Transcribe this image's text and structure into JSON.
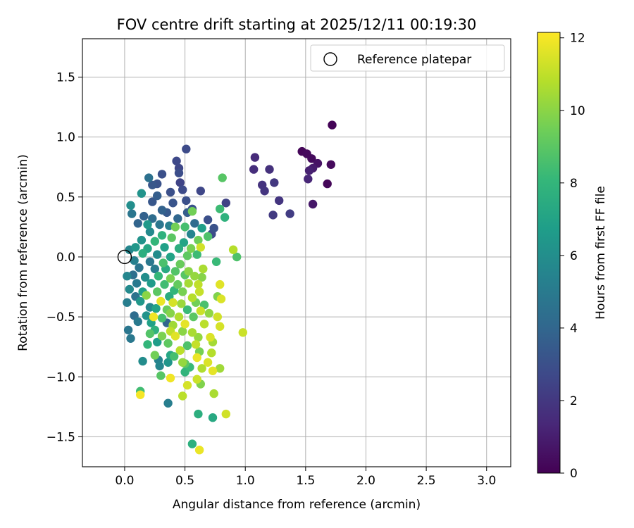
{
  "chart_data": {
    "type": "scatter",
    "title": "FOV centre drift starting at 2025/12/11 00:19:30",
    "xlabel": "Angular distance from reference (arcmin)",
    "ylabel": "Rotation from reference (arcmin)",
    "xlim": [
      -0.35,
      3.2
    ],
    "ylim": [
      -1.75,
      1.82
    ],
    "xticks": [
      0.0,
      0.5,
      1.0,
      1.5,
      2.0,
      2.5,
      3.0
    ],
    "xtick_labels": [
      "0.0",
      "0.5",
      "1.0",
      "1.5",
      "2.0",
      "2.5",
      "3.0"
    ],
    "yticks": [
      -1.5,
      -1.0,
      -0.5,
      0.0,
      0.5,
      1.0,
      1.5
    ],
    "ytick_labels": [
      "−1.5",
      "−1.0",
      "−0.5",
      "0.0",
      "0.5",
      "1.0",
      "1.5"
    ],
    "grid": true,
    "legend": {
      "position": "top-right",
      "label": "Reference platepar"
    },
    "reference_point": {
      "x": 0.0,
      "y": 0.0
    },
    "colorbar": {
      "label": "Hours from first FF file",
      "colormap": "viridis",
      "range": [
        0,
        12.15
      ],
      "ticks": [
        0,
        2,
        4,
        6,
        8,
        10,
        12
      ],
      "tick_labels": [
        "0",
        "2",
        "4",
        "6",
        "8",
        "10",
        "12"
      ]
    },
    "colormap_stops": [
      "#440154",
      "#482878",
      "#3e4989",
      "#31688e",
      "#26828e",
      "#1f9e89",
      "#35b779",
      "#6ece58",
      "#b5de2b",
      "#fde725"
    ],
    "points": [
      {
        "x": 1.72,
        "y": 1.1,
        "c": 0.1
      },
      {
        "x": 1.47,
        "y": 0.88,
        "c": 0.2
      },
      {
        "x": 1.51,
        "y": 0.86,
        "c": 0.3
      },
      {
        "x": 1.55,
        "y": 0.82,
        "c": 0.35
      },
      {
        "x": 1.6,
        "y": 0.78,
        "c": 0.6
      },
      {
        "x": 1.71,
        "y": 0.77,
        "c": 0.3
      },
      {
        "x": 1.56,
        "y": 0.74,
        "c": 0.9
      },
      {
        "x": 1.53,
        "y": 0.72,
        "c": 1.1
      },
      {
        "x": 1.52,
        "y": 0.65,
        "c": 1.3
      },
      {
        "x": 1.68,
        "y": 0.61,
        "c": 0.2
      },
      {
        "x": 1.56,
        "y": 0.44,
        "c": 0.8
      },
      {
        "x": 1.08,
        "y": 0.83,
        "c": 1.5
      },
      {
        "x": 1.07,
        "y": 0.73,
        "c": 1.6
      },
      {
        "x": 1.2,
        "y": 0.73,
        "c": 1.7
      },
      {
        "x": 1.14,
        "y": 0.6,
        "c": 1.8
      },
      {
        "x": 1.16,
        "y": 0.55,
        "c": 1.9
      },
      {
        "x": 1.24,
        "y": 0.62,
        "c": 2.0
      },
      {
        "x": 1.28,
        "y": 0.47,
        "c": 1.9
      },
      {
        "x": 1.23,
        "y": 0.35,
        "c": 2.1
      },
      {
        "x": 1.37,
        "y": 0.36,
        "c": 2.2
      },
      {
        "x": 0.51,
        "y": 0.9,
        "c": 2.8
      },
      {
        "x": 0.43,
        "y": 0.8,
        "c": 2.7
      },
      {
        "x": 0.45,
        "y": 0.74,
        "c": 2.6
      },
      {
        "x": 0.45,
        "y": 0.7,
        "c": 2.9
      },
      {
        "x": 0.31,
        "y": 0.69,
        "c": 3.0
      },
      {
        "x": 0.2,
        "y": 0.66,
        "c": 4.5
      },
      {
        "x": 0.46,
        "y": 0.62,
        "c": 2.5
      },
      {
        "x": 0.23,
        "y": 0.6,
        "c": 3.3
      },
      {
        "x": 0.27,
        "y": 0.61,
        "c": 3.1
      },
      {
        "x": 0.48,
        "y": 0.56,
        "c": 2.8
      },
      {
        "x": 0.63,
        "y": 0.55,
        "c": 2.6
      },
      {
        "x": 0.38,
        "y": 0.54,
        "c": 3.0
      },
      {
        "x": 0.14,
        "y": 0.53,
        "c": 6.2
      },
      {
        "x": 0.27,
        "y": 0.51,
        "c": 3.6
      },
      {
        "x": 0.51,
        "y": 0.47,
        "c": 3.0
      },
      {
        "x": 0.23,
        "y": 0.46,
        "c": 3.3
      },
      {
        "x": 0.4,
        "y": 0.45,
        "c": 3.2
      },
      {
        "x": 0.84,
        "y": 0.45,
        "c": 2.4
      },
      {
        "x": 0.56,
        "y": 0.4,
        "c": 3.1
      },
      {
        "x": 0.79,
        "y": 0.4,
        "c": 8.3
      },
      {
        "x": 0.81,
        "y": 0.66,
        "c": 8.9
      },
      {
        "x": 0.05,
        "y": 0.43,
        "c": 6.0
      },
      {
        "x": 0.31,
        "y": 0.39,
        "c": 3.8
      },
      {
        "x": 0.35,
        "y": 0.37,
        "c": 3.4
      },
      {
        "x": 0.52,
        "y": 0.37,
        "c": 3.6
      },
      {
        "x": 0.56,
        "y": 0.38,
        "c": 9.5
      },
      {
        "x": 0.06,
        "y": 0.36,
        "c": 4.8
      },
      {
        "x": 0.16,
        "y": 0.34,
        "c": 3.8
      },
      {
        "x": 0.23,
        "y": 0.32,
        "c": 4.3
      },
      {
        "x": 0.44,
        "y": 0.32,
        "c": 4.0
      },
      {
        "x": 0.69,
        "y": 0.31,
        "c": 3.0
      },
      {
        "x": 0.83,
        "y": 0.33,
        "c": 7.8
      },
      {
        "x": 0.11,
        "y": 0.28,
        "c": 3.9
      },
      {
        "x": 0.19,
        "y": 0.27,
        "c": 6.5
      },
      {
        "x": 0.29,
        "y": 0.27,
        "c": 4.8
      },
      {
        "x": 0.37,
        "y": 0.26,
        "c": 5.3
      },
      {
        "x": 0.42,
        "y": 0.25,
        "c": 9.5
      },
      {
        "x": 0.5,
        "y": 0.25,
        "c": 8.5
      },
      {
        "x": 0.58,
        "y": 0.28,
        "c": 4.2
      },
      {
        "x": 0.74,
        "y": 0.24,
        "c": 3.1
      },
      {
        "x": 0.64,
        "y": 0.24,
        "c": 6.8
      },
      {
        "x": 0.72,
        "y": 0.19,
        "c": 2.8
      },
      {
        "x": 0.21,
        "y": 0.21,
        "c": 5.8
      },
      {
        "x": 0.31,
        "y": 0.18,
        "c": 7.8
      },
      {
        "x": 0.39,
        "y": 0.16,
        "c": 9.0
      },
      {
        "x": 0.55,
        "y": 0.19,
        "c": 5.5
      },
      {
        "x": 0.69,
        "y": 0.17,
        "c": 8.7
      },
      {
        "x": 0.14,
        "y": 0.14,
        "c": 6.2
      },
      {
        "x": 0.25,
        "y": 0.13,
        "c": 8.0
      },
      {
        "x": 0.49,
        "y": 0.12,
        "c": 7.1
      },
      {
        "x": 0.61,
        "y": 0.14,
        "c": 9.4
      },
      {
        "x": 0.04,
        "y": 0.06,
        "c": 5.6
      },
      {
        "x": 0.09,
        "y": 0.08,
        "c": 6.4
      },
      {
        "x": 0.19,
        "y": 0.07,
        "c": 7.2
      },
      {
        "x": 0.33,
        "y": 0.08,
        "c": 6.9
      },
      {
        "x": 0.45,
        "y": 0.07,
        "c": 7.6
      },
      {
        "x": 0.55,
        "y": 0.07,
        "c": 9.6
      },
      {
        "x": 0.63,
        "y": 0.08,
        "c": 11.3
      },
      {
        "x": 0.9,
        "y": 0.06,
        "c": 10.8
      },
      {
        "x": 0.93,
        "y": 0.0,
        "c": 8.7
      },
      {
        "x": 0.15,
        "y": 0.03,
        "c": 7.6
      },
      {
        "x": 0.27,
        "y": 0.02,
        "c": 5.9
      },
      {
        "x": 0.38,
        "y": 0.0,
        "c": 7.0
      },
      {
        "x": 0.52,
        "y": 0.01,
        "c": 9.1
      },
      {
        "x": 0.6,
        "y": 0.02,
        "c": 8.3
      },
      {
        "x": 0.08,
        "y": -0.03,
        "c": 5.3
      },
      {
        "x": 0.21,
        "y": -0.04,
        "c": 4.9
      },
      {
        "x": 0.32,
        "y": -0.05,
        "c": 8.6
      },
      {
        "x": 0.46,
        "y": -0.06,
        "c": 9.3
      },
      {
        "x": 0.76,
        "y": -0.04,
        "c": 8.2
      },
      {
        "x": 0.12,
        "y": -0.09,
        "c": 4.7
      },
      {
        "x": 0.25,
        "y": -0.1,
        "c": 5.1
      },
      {
        "x": 0.34,
        "y": -0.1,
        "c": 7.4
      },
      {
        "x": 0.42,
        "y": -0.12,
        "c": 8.8
      },
      {
        "x": 0.53,
        "y": -0.12,
        "c": 10.0
      },
      {
        "x": 0.65,
        "y": -0.1,
        "c": 10.6
      },
      {
        "x": 0.02,
        "y": -0.16,
        "c": 5.6
      },
      {
        "x": 0.07,
        "y": -0.15,
        "c": 4.4
      },
      {
        "x": 0.17,
        "y": -0.17,
        "c": 6.0
      },
      {
        "x": 0.28,
        "y": -0.16,
        "c": 8.1
      },
      {
        "x": 0.38,
        "y": -0.18,
        "c": 9.7
      },
      {
        "x": 0.5,
        "y": -0.15,
        "c": 8.9
      },
      {
        "x": 0.58,
        "y": -0.16,
        "c": 10.2
      },
      {
        "x": 0.64,
        "y": -0.17,
        "c": 9.9
      },
      {
        "x": 0.1,
        "y": -0.22,
        "c": 5.0
      },
      {
        "x": 0.22,
        "y": -0.22,
        "c": 6.6
      },
      {
        "x": 0.33,
        "y": -0.23,
        "c": 8.4
      },
      {
        "x": 0.44,
        "y": -0.23,
        "c": 9.2
      },
      {
        "x": 0.53,
        "y": -0.22,
        "c": 10.5
      },
      {
        "x": 0.61,
        "y": -0.23,
        "c": 11.0
      },
      {
        "x": 0.79,
        "y": -0.23,
        "c": 11.6
      },
      {
        "x": 0.04,
        "y": -0.27,
        "c": 5.8
      },
      {
        "x": 0.15,
        "y": -0.29,
        "c": 6.8
      },
      {
        "x": 0.27,
        "y": -0.29,
        "c": 9.0
      },
      {
        "x": 0.41,
        "y": -0.28,
        "c": 8.0
      },
      {
        "x": 0.48,
        "y": -0.29,
        "c": 9.6
      },
      {
        "x": 0.62,
        "y": -0.29,
        "c": 11.1
      },
      {
        "x": 0.18,
        "y": -0.32,
        "c": 10.0
      },
      {
        "x": 0.09,
        "y": -0.33,
        "c": 4.6
      },
      {
        "x": 0.37,
        "y": -0.33,
        "c": 7.5
      },
      {
        "x": 0.56,
        "y": -0.34,
        "c": 10.8
      },
      {
        "x": 0.77,
        "y": -0.33,
        "c": 9.8
      },
      {
        "x": 0.8,
        "y": -0.35,
        "c": 11.5
      },
      {
        "x": 0.02,
        "y": -0.38,
        "c": 5.2
      },
      {
        "x": 0.13,
        "y": -0.37,
        "c": 6.4
      },
      {
        "x": 0.3,
        "y": -0.37,
        "c": 11.8
      },
      {
        "x": 0.4,
        "y": -0.38,
        "c": 11.4
      },
      {
        "x": 0.47,
        "y": -0.39,
        "c": 10.3
      },
      {
        "x": 0.59,
        "y": -0.38,
        "c": 9.5
      },
      {
        "x": 0.66,
        "y": -0.4,
        "c": 8.6
      },
      {
        "x": 0.21,
        "y": -0.42,
        "c": 5.7
      },
      {
        "x": 0.26,
        "y": -0.43,
        "c": 7.0
      },
      {
        "x": 0.35,
        "y": -0.44,
        "c": 9.3
      },
      {
        "x": 0.52,
        "y": -0.44,
        "c": 8.2
      },
      {
        "x": 0.63,
        "y": -0.45,
        "c": 11.2
      },
      {
        "x": 0.38,
        "y": -0.47,
        "c": 9.9
      },
      {
        "x": 0.7,
        "y": -0.47,
        "c": 10.1
      },
      {
        "x": 0.08,
        "y": -0.49,
        "c": 4.3
      },
      {
        "x": 0.18,
        "y": -0.49,
        "c": 6.2
      },
      {
        "x": 0.24,
        "y": -0.5,
        "c": 11.9
      },
      {
        "x": 0.31,
        "y": -0.51,
        "c": 8.5
      },
      {
        "x": 0.45,
        "y": -0.5,
        "c": 10.7
      },
      {
        "x": 0.57,
        "y": -0.5,
        "c": 9.0
      },
      {
        "x": 0.77,
        "y": -0.5,
        "c": 11.3
      },
      {
        "x": 0.11,
        "y": -0.54,
        "c": 5.0
      },
      {
        "x": 0.22,
        "y": -0.55,
        "c": 6.9
      },
      {
        "x": 0.35,
        "y": -0.55,
        "c": 3.9
      },
      {
        "x": 0.4,
        "y": -0.57,
        "c": 10.4
      },
      {
        "x": 0.5,
        "y": -0.56,
        "c": 11.7
      },
      {
        "x": 0.66,
        "y": -0.56,
        "c": 10.9
      },
      {
        "x": 0.79,
        "y": -0.58,
        "c": 11.4
      },
      {
        "x": 0.03,
        "y": -0.61,
        "c": 4.8
      },
      {
        "x": 0.25,
        "y": -0.61,
        "c": 7.8
      },
      {
        "x": 0.38,
        "y": -0.62,
        "c": 11.0
      },
      {
        "x": 0.48,
        "y": -0.62,
        "c": 10.0
      },
      {
        "x": 0.56,
        "y": -0.63,
        "c": 10.6
      },
      {
        "x": 0.98,
        "y": -0.63,
        "c": 11.2
      },
      {
        "x": 0.21,
        "y": -0.64,
        "c": 8.8
      },
      {
        "x": 0.31,
        "y": -0.66,
        "c": 9.7
      },
      {
        "x": 0.42,
        "y": -0.66,
        "c": 11.6
      },
      {
        "x": 0.61,
        "y": -0.67,
        "c": 10.2
      },
      {
        "x": 0.71,
        "y": -0.67,
        "c": 11.5
      },
      {
        "x": 0.05,
        "y": -0.68,
        "c": 4.9
      },
      {
        "x": 0.19,
        "y": -0.73,
        "c": 8.0
      },
      {
        "x": 0.27,
        "y": -0.71,
        "c": 6.7
      },
      {
        "x": 0.36,
        "y": -0.72,
        "c": 9.1
      },
      {
        "x": 0.52,
        "y": -0.74,
        "c": 8.7
      },
      {
        "x": 0.59,
        "y": -0.73,
        "c": 11.1
      },
      {
        "x": 0.73,
        "y": -0.71,
        "c": 10.5
      },
      {
        "x": 0.46,
        "y": -0.78,
        "c": 10.9
      },
      {
        "x": 0.62,
        "y": -0.79,
        "c": 9.6
      },
      {
        "x": 0.25,
        "y": -0.82,
        "c": 9.5
      },
      {
        "x": 0.38,
        "y": -0.82,
        "c": 7.2
      },
      {
        "x": 0.41,
        "y": -0.83,
        "c": 8.5
      },
      {
        "x": 0.72,
        "y": -0.8,
        "c": 10.8
      },
      {
        "x": 0.6,
        "y": -0.84,
        "c": 11.8
      },
      {
        "x": 0.28,
        "y": -0.86,
        "c": 5.4
      },
      {
        "x": 0.15,
        "y": -0.87,
        "c": 5.9
      },
      {
        "x": 0.36,
        "y": -0.88,
        "c": 6.3
      },
      {
        "x": 0.48,
        "y": -0.88,
        "c": 10.2
      },
      {
        "x": 0.69,
        "y": -0.88,
        "c": 11.5
      },
      {
        "x": 0.5,
        "y": -0.89,
        "c": 9.0
      },
      {
        "x": 0.29,
        "y": -0.91,
        "c": 5.6
      },
      {
        "x": 0.54,
        "y": -0.92,
        "c": 8.2
      },
      {
        "x": 0.64,
        "y": -0.93,
        "c": 10.7
      },
      {
        "x": 0.79,
        "y": -0.93,
        "c": 10.4
      },
      {
        "x": 0.73,
        "y": -0.95,
        "c": 11.7
      },
      {
        "x": 0.5,
        "y": -0.96,
        "c": 7.9
      },
      {
        "x": 0.3,
        "y": -0.99,
        "c": 8.9
      },
      {
        "x": 0.38,
        "y": -1.01,
        "c": 11.9
      },
      {
        "x": 0.6,
        "y": -1.02,
        "c": 11.2
      },
      {
        "x": 0.63,
        "y": -1.06,
        "c": 9.8
      },
      {
        "x": 0.52,
        "y": -1.07,
        "c": 11.4
      },
      {
        "x": 0.13,
        "y": -1.12,
        "c": 8.4
      },
      {
        "x": 0.13,
        "y": -1.15,
        "c": 12.0
      },
      {
        "x": 0.74,
        "y": -1.14,
        "c": 10.6
      },
      {
        "x": 0.48,
        "y": -1.16,
        "c": 10.9
      },
      {
        "x": 0.36,
        "y": -1.22,
        "c": 5.2
      },
      {
        "x": 0.61,
        "y": -1.31,
        "c": 7.6
      },
      {
        "x": 0.84,
        "y": -1.31,
        "c": 11.3
      },
      {
        "x": 0.73,
        "y": -1.34,
        "c": 7.3
      },
      {
        "x": 0.56,
        "y": -1.56,
        "c": 7.7
      },
      {
        "x": 0.62,
        "y": -1.61,
        "c": 11.8
      }
    ]
  }
}
